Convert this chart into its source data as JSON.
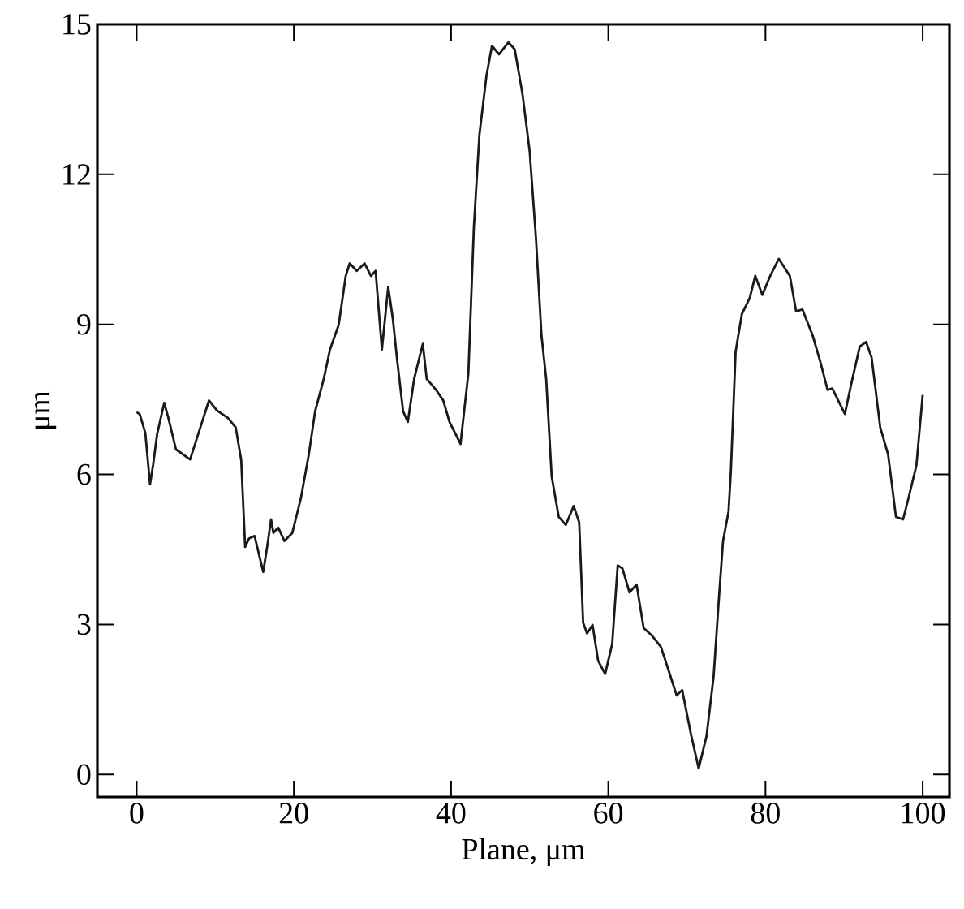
{
  "chart_data": {
    "type": "line",
    "xlabel": "Plane, μm",
    "ylabel": "μm",
    "xlim": [
      -5,
      103.4
    ],
    "ylim": [
      -0.45,
      15
    ],
    "xticks": [
      0,
      20,
      40,
      60,
      80,
      100
    ],
    "yticks": [
      0,
      3,
      6,
      9,
      12,
      15
    ],
    "color": "#1a1a1a",
    "x": [
      0,
      0.4,
      1.1,
      1.7,
      2.1,
      2.6,
      3.5,
      4.0,
      5.0,
      6.8,
      9.2,
      10.2,
      11.6,
      12.6,
      13.3,
      13.8,
      14.3,
      15.0,
      16.1,
      16.6,
      17.1,
      17.4,
      18.0,
      18.8,
      19.8,
      20.9,
      21.9,
      22.7,
      23.8,
      24.6,
      25.7,
      26.6,
      27.1,
      28.0,
      29.0,
      29.8,
      30.4,
      31.2,
      32.0,
      32.6,
      33.1,
      33.9,
      34.5,
      35.3,
      36.4,
      36.9,
      38.1,
      39.0,
      39.8,
      41.2,
      42.2,
      42.9,
      43.6,
      44.5,
      45.2,
      46.1,
      47.3,
      48.1,
      49.1,
      50.0,
      50.8,
      51.5,
      52.1,
      52.8,
      53.7,
      54.6,
      55.6,
      56.3,
      56.8,
      57.3,
      58.0,
      58.7,
      59.6,
      60.5,
      61.2,
      61.8,
      62.7,
      63.6,
      64.5,
      65.6,
      66.7,
      67.7,
      68.7,
      69.4,
      70.5,
      71.5,
      72.5,
      73.4,
      74.1,
      74.6,
      75.3,
      75.6,
      76.2,
      77.0,
      78.0,
      78.7,
      79.6,
      80.6,
      81.7,
      83.1,
      83.9,
      84.7,
      86.0,
      87.0,
      87.9,
      88.5,
      90.1,
      90.9,
      92.0,
      92.8,
      93.5,
      94.6,
      95.6,
      96.6,
      97.5,
      98.2,
      99.2,
      100.0
    ],
    "values": [
      7.25,
      7.2,
      6.83,
      5.8,
      6.2,
      6.8,
      7.43,
      7.15,
      6.5,
      6.3,
      7.48,
      7.28,
      7.13,
      6.94,
      6.29,
      4.55,
      4.72,
      4.77,
      4.05,
      4.55,
      5.1,
      4.83,
      4.94,
      4.67,
      4.83,
      5.53,
      6.4,
      7.26,
      7.91,
      8.5,
      8.99,
      9.97,
      10.22,
      10.07,
      10.22,
      9.97,
      10.07,
      8.5,
      9.75,
      9.1,
      8.34,
      7.26,
      7.05,
      7.91,
      8.61,
      7.91,
      7.69,
      7.48,
      7.05,
      6.61,
      8.02,
      10.94,
      12.78,
      13.97,
      14.57,
      14.4,
      14.64,
      14.5,
      13.59,
      12.46,
      10.72,
      8.78,
      7.91,
      5.96,
      5.15,
      4.99,
      5.37,
      5.04,
      3.04,
      2.82,
      2.99,
      2.28,
      2.01,
      2.61,
      4.18,
      4.12,
      3.64,
      3.8,
      2.93,
      2.77,
      2.55,
      2.07,
      1.58,
      1.69,
      0.82,
      0.12,
      0.77,
      1.96,
      3.58,
      4.67,
      5.26,
      6.07,
      8.45,
      9.21,
      9.53,
      9.97,
      9.59,
      9.97,
      10.31,
      9.97,
      9.26,
      9.3,
      8.78,
      8.24,
      7.69,
      7.72,
      7.21,
      7.8,
      8.56,
      8.65,
      8.34,
      6.94,
      6.4,
      5.15,
      5.1,
      5.53,
      6.18,
      7.59
    ]
  }
}
